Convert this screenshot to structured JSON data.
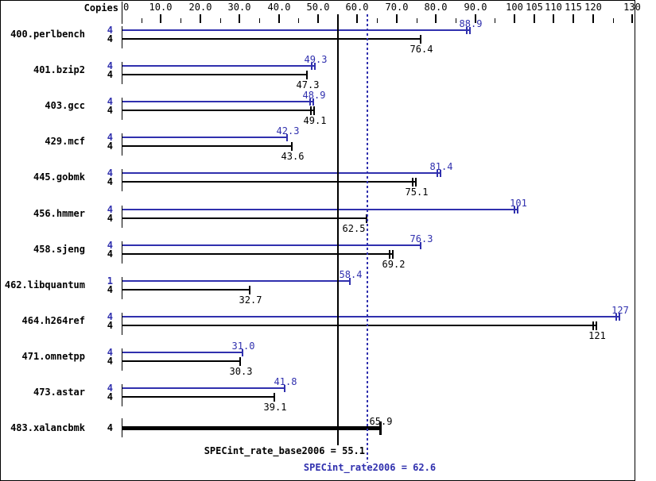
{
  "chart_data": {
    "type": "bar",
    "orientation": "horizontal",
    "title": "",
    "copies_header": "Copies",
    "axis": {
      "min": 0,
      "max": 130,
      "labeled_ticks": [
        {
          "value": 0,
          "label": "0"
        },
        {
          "value": 10,
          "label": "10.0"
        },
        {
          "value": 20,
          "label": "20.0"
        },
        {
          "value": 30,
          "label": "30.0"
        },
        {
          "value": 40,
          "label": "40.0"
        },
        {
          "value": 50,
          "label": "50.0"
        },
        {
          "value": 60,
          "label": "60.0"
        },
        {
          "value": 70,
          "label": "70.0"
        },
        {
          "value": 80,
          "label": "80.0"
        },
        {
          "value": 90,
          "label": "90.0"
        },
        {
          "value": 100,
          "label": "100"
        },
        {
          "value": 105,
          "label": "105"
        },
        {
          "value": 110,
          "label": "110"
        },
        {
          "value": 115,
          "label": "115"
        },
        {
          "value": 120,
          "label": "120"
        },
        {
          "value": 130,
          "label": "130"
        }
      ],
      "minor_ticks": [
        5,
        15,
        25,
        35,
        45,
        55,
        65,
        75,
        85,
        95,
        125
      ]
    },
    "colors": {
      "peak": "#3030ae",
      "base": "#000000",
      "background": "#ffffff"
    },
    "benchmarks": [
      {
        "name": "400.perlbench",
        "bars": [
          {
            "series": "peak",
            "copies": "4",
            "value": 88.9,
            "label": "88.9",
            "marker": "double"
          },
          {
            "series": "base",
            "copies": "4",
            "value": 76.4,
            "label": "76.4",
            "marker": "single"
          }
        ]
      },
      {
        "name": "401.bzip2",
        "bars": [
          {
            "series": "peak",
            "copies": "4",
            "value": 49.3,
            "label": "49.3",
            "marker": "double"
          },
          {
            "series": "base",
            "copies": "4",
            "value": 47.3,
            "label": "47.3",
            "marker": "single"
          }
        ]
      },
      {
        "name": "403.gcc",
        "bars": [
          {
            "series": "peak",
            "copies": "4",
            "value": 48.9,
            "label": "48.9",
            "marker": "double"
          },
          {
            "series": "base",
            "copies": "4",
            "value": 49.1,
            "label": "49.1",
            "marker": "double"
          }
        ]
      },
      {
        "name": "429.mcf",
        "bars": [
          {
            "series": "peak",
            "copies": "4",
            "value": 42.3,
            "label": "42.3",
            "marker": "single"
          },
          {
            "series": "base",
            "copies": "4",
            "value": 43.6,
            "label": "43.6",
            "marker": "single"
          }
        ]
      },
      {
        "name": "445.gobmk",
        "bars": [
          {
            "series": "peak",
            "copies": "4",
            "value": 81.4,
            "label": "81.4",
            "marker": "double"
          },
          {
            "series": "base",
            "copies": "4",
            "value": 75.1,
            "label": "75.1",
            "marker": "double"
          }
        ]
      },
      {
        "name": "456.hmmer",
        "bars": [
          {
            "series": "peak",
            "copies": "4",
            "value": 101,
            "label": "101",
            "marker": "double"
          },
          {
            "series": "base",
            "copies": "4",
            "value": 62.5,
            "label": "62.5",
            "marker": "single",
            "label_dx": -17
          }
        ]
      },
      {
        "name": "458.sjeng",
        "bars": [
          {
            "series": "peak",
            "copies": "4",
            "value": 76.3,
            "label": "76.3",
            "marker": "single"
          },
          {
            "series": "base",
            "copies": "4",
            "value": 69.2,
            "label": "69.2",
            "marker": "double"
          }
        ]
      },
      {
        "name": "462.libquantum",
        "bars": [
          {
            "series": "peak",
            "copies": "1",
            "value": 58.4,
            "label": "58.4",
            "marker": "single"
          },
          {
            "series": "base",
            "copies": "4",
            "value": 32.7,
            "label": "32.7",
            "marker": "single"
          }
        ]
      },
      {
        "name": "464.h264ref",
        "bars": [
          {
            "series": "peak",
            "copies": "4",
            "value": 127,
            "label": "127",
            "marker": "double"
          },
          {
            "series": "base",
            "copies": "4",
            "value": 121,
            "label": "121",
            "marker": "double"
          }
        ]
      },
      {
        "name": "471.omnetpp",
        "bars": [
          {
            "series": "peak",
            "copies": "4",
            "value": 31.0,
            "label": "31.0",
            "marker": "single"
          },
          {
            "series": "base",
            "copies": "4",
            "value": 30.3,
            "label": "30.3",
            "marker": "single"
          }
        ]
      },
      {
        "name": "473.astar",
        "bars": [
          {
            "series": "peak",
            "copies": "4",
            "value": 41.8,
            "label": "41.8",
            "marker": "single"
          },
          {
            "series": "base",
            "copies": "4",
            "value": 39.1,
            "label": "39.1",
            "marker": "single"
          }
        ]
      },
      {
        "name": "483.xalancbmk",
        "bars": [
          {
            "series": "base",
            "copies": "4",
            "value": 65.9,
            "label": "65.9",
            "marker": "thick"
          }
        ]
      }
    ],
    "summary_lines": [
      {
        "series": "base",
        "label": "SPECint_rate_base2006 = 55.1",
        "value": 55.1,
        "style": "solid",
        "color": "#000000"
      },
      {
        "series": "peak",
        "label": "SPECint_rate2006 = 62.6",
        "value": 62.6,
        "style": "dotted",
        "color": "#3030ae"
      }
    ]
  }
}
